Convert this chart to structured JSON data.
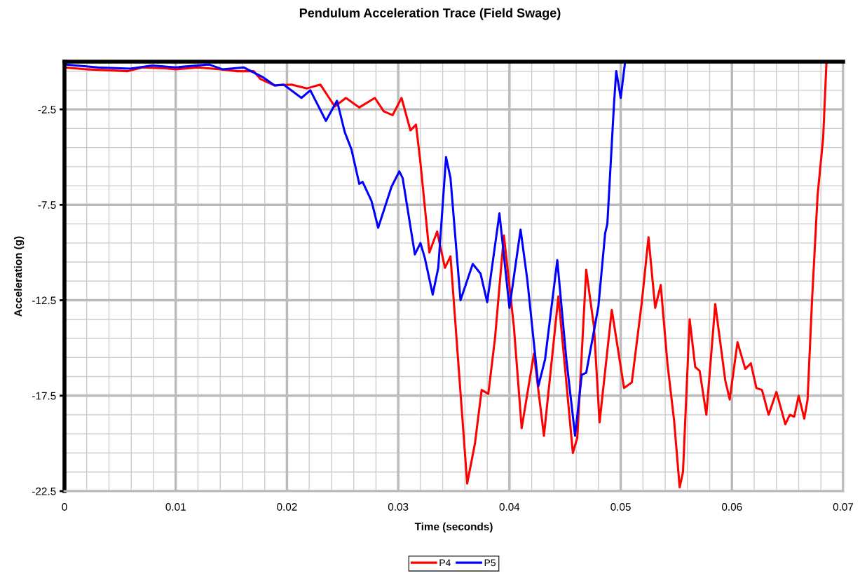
{
  "chart_data": {
    "type": "line",
    "title": "Pendulum Acceleration Trace (Field Swage)",
    "xlabel": "Time (seconds)",
    "ylabel": "Acceleration (g)",
    "xlim": [
      0,
      0.07
    ],
    "xticks": [
      0,
      0.01,
      0.02,
      0.03,
      0.04,
      0.05,
      0.06,
      0.07
    ],
    "ylim": [
      -22.5,
      0
    ],
    "yticks": [
      -22.5,
      -17.5,
      -12.5,
      -7.5,
      -2.5
    ],
    "grid": true,
    "legend": "bottom",
    "marker": "none",
    "line_style": "solid",
    "series": [
      {
        "name": "P4",
        "color": "#ff0000",
        "x": [
          0,
          0.002,
          0.0057,
          0.007,
          0.009,
          0.01,
          0.012,
          0.014,
          0.0155,
          0.017,
          0.0176,
          0.0189,
          0.0204,
          0.0218,
          0.023,
          0.0243,
          0.0253,
          0.0265,
          0.0279,
          0.0287,
          0.0295,
          0.0303,
          0.0311,
          0.0316,
          0.032,
          0.0328,
          0.0335,
          0.0342,
          0.0347,
          0.0362,
          0.0369,
          0.0375,
          0.0381,
          0.0387,
          0.0395,
          0.0404,
          0.0411,
          0.0422,
          0.0431,
          0.0444,
          0.0457,
          0.0461,
          0.0469,
          0.0476,
          0.0481,
          0.0492,
          0.0503,
          0.051,
          0.0519,
          0.0525,
          0.0531,
          0.0536,
          0.0542,
          0.0548,
          0.0553,
          0.0556,
          0.0562,
          0.0567,
          0.0571,
          0.0577,
          0.0585,
          0.0594,
          0.0598,
          0.0605,
          0.0612,
          0.0617,
          0.0622,
          0.0627,
          0.0633,
          0.064,
          0.0648,
          0.0652,
          0.0656,
          0.066,
          0.0665,
          0.0668,
          0.0672,
          0.0677,
          0.0682,
          0.0685
        ],
        "values": [
          -0.3,
          -0.4,
          -0.5,
          -0.3,
          -0.35,
          -0.4,
          -0.3,
          -0.4,
          -0.5,
          -0.5,
          -0.9,
          -1.25,
          -1.2,
          -1.4,
          -1.2,
          -2.35,
          -1.9,
          -2.4,
          -1.9,
          -2.6,
          -2.8,
          -1.9,
          -3.6,
          -3.3,
          -5.3,
          -10.0,
          -8.9,
          -10.8,
          -10.2,
          -22.1,
          -20.0,
          -17.2,
          -17.4,
          -14.5,
          -9.1,
          -13.9,
          -19.2,
          -15.3,
          -19.6,
          -12.3,
          -20.5,
          -19.7,
          -10.9,
          -13.9,
          -18.9,
          -13.0,
          -17.1,
          -16.8,
          -12.6,
          -9.2,
          -12.9,
          -11.7,
          -15.8,
          -18.8,
          -22.3,
          -21.5,
          -13.5,
          -16.0,
          -16.2,
          -18.5,
          -12.7,
          -16.7,
          -17.7,
          -14.7,
          -16.1,
          -15.8,
          -17.1,
          -17.2,
          -18.5,
          -17.3,
          -19.0,
          -18.5,
          -18.6,
          -17.5,
          -18.7,
          -17.7,
          -12.5,
          -7.0,
          -4.0,
          0
        ]
      },
      {
        "name": "P5",
        "color": "#0000ff",
        "x": [
          0,
          0.003,
          0.0059,
          0.0079,
          0.01,
          0.013,
          0.0142,
          0.0161,
          0.0178,
          0.0189,
          0.0197,
          0.0213,
          0.0221,
          0.0235,
          0.0245,
          0.0252,
          0.0258,
          0.0265,
          0.0268,
          0.0276,
          0.0282,
          0.0294,
          0.0301,
          0.0304,
          0.0315,
          0.032,
          0.0324,
          0.0331,
          0.0336,
          0.0343,
          0.0347,
          0.0356,
          0.0367,
          0.0374,
          0.038,
          0.0391,
          0.04,
          0.041,
          0.0416,
          0.0426,
          0.0432,
          0.0443,
          0.0451,
          0.0459,
          0.0465,
          0.0469,
          0.0476,
          0.048,
          0.0486,
          0.0488,
          0.0494,
          0.0496,
          0.05,
          0.0504
        ],
        "values": [
          -0.15,
          -0.3,
          -0.37,
          -0.2,
          -0.3,
          -0.15,
          -0.4,
          -0.3,
          -0.8,
          -1.25,
          -1.2,
          -1.9,
          -1.5,
          -3.1,
          -2.05,
          -3.7,
          -4.6,
          -6.4,
          -6.3,
          -7.3,
          -8.7,
          -6.55,
          -5.75,
          -6.1,
          -10.1,
          -9.5,
          -10.3,
          -12.2,
          -10.8,
          -5.0,
          -6.1,
          -12.5,
          -10.6,
          -11.1,
          -12.6,
          -7.95,
          -12.9,
          -8.8,
          -11.4,
          -17.0,
          -15.6,
          -10.4,
          -15.5,
          -19.6,
          -16.4,
          -16.3,
          -14.1,
          -12.8,
          -9.0,
          -8.5,
          -2.2,
          -0.5,
          -1.9,
          0
        ]
      }
    ]
  }
}
